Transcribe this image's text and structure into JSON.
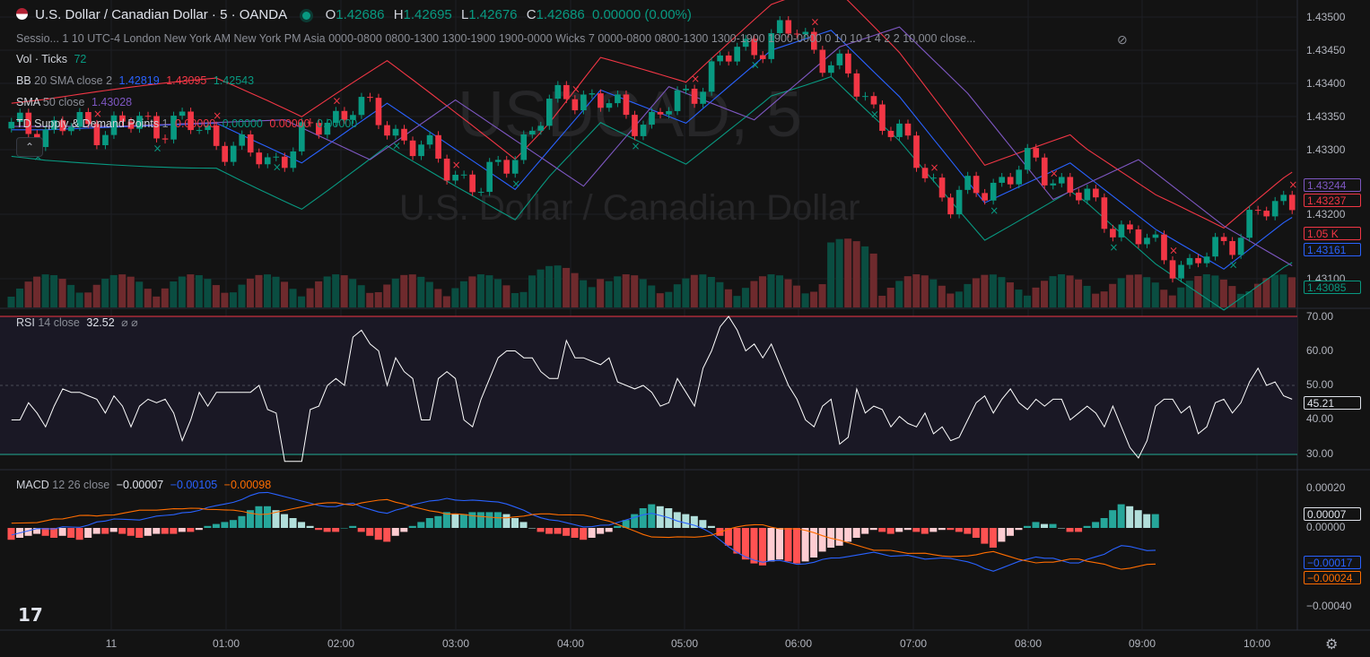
{
  "header": {
    "symbol_title": "U.S. Dollar / Canadian Dollar · 5 · OANDA",
    "o_label": "O",
    "o_value": "1.42686",
    "h_label": "H",
    "h_value": "1.42695",
    "l_label": "L",
    "l_value": "1.42676",
    "c_label": "C",
    "c_value": "1.42686",
    "change": "0.00000 (0.00%)"
  },
  "watermark": {
    "ticker": "USDCAD, 5",
    "name": "U.S. Dollar / Canadian Dollar"
  },
  "indicators": {
    "sessions_text": "Sessio... 1 10 UTC-4 London New York AM New York PM Asia 0000-0800 0800-1300 1300-1900 1900-0000 Wicks 7 0000-0800 0800-1300 1300-1900 1900-0000 0 10 10 1 4 2 2 10,000 close...",
    "vol_label": "Vol · Ticks",
    "vol_value": "72",
    "bb_label": "BB",
    "bb_params": "20 SMA close 2",
    "bb_basis": "1.42819",
    "bb_upper": "1.43095",
    "bb_lower": "1.42543",
    "sma_label": "SMA",
    "sma_params": "50 close",
    "sma_value": "1.43028",
    "td_label": "TD Supply & Demand Points",
    "td_params": "1",
    "td_values": [
      "0.00000",
      "0.00000",
      "0.00000",
      "0.00000"
    ],
    "collapse_icon": "chevron-up-icon"
  },
  "price_axis": {
    "ticks": [
      "1.43500",
      "1.43450",
      "1.43400",
      "1.43350",
      "1.43300",
      "1.43200",
      "1.43100"
    ],
    "tags": [
      {
        "text": "1.43244",
        "color": "#7e57c2",
        "style": "outline"
      },
      {
        "text": "1.43237",
        "color": "#f23645",
        "style": "outline"
      },
      {
        "text": "1.05 K",
        "color": "#f23645",
        "style": "outline"
      },
      {
        "text": "1.43161",
        "color": "#2962ff",
        "style": "outline"
      },
      {
        "text": "1.43085",
        "color": "#089981",
        "style": "outline"
      }
    ]
  },
  "rsi": {
    "label": "RSI",
    "params": "14 close",
    "value": "32.52",
    "extra": "⌀ ⌀",
    "ticks": [
      "70.00",
      "60.00",
      "50.00",
      "40.00",
      "30.00"
    ],
    "current_tag": "45.21",
    "overbought": 70,
    "oversold": 30,
    "middle": 50
  },
  "macd": {
    "label": "MACD",
    "params": "12 26 close",
    "hist_value": "−0.00007",
    "macd_value": "−0.00105",
    "signal_value": "−0.00098",
    "ticks": [
      "0.00020",
      "0.00000",
      "−0.00040"
    ],
    "tags": [
      {
        "text": "0.00007",
        "color": "#d1d4dc",
        "style": "outline"
      },
      {
        "text": "−0.00017",
        "color": "#2962ff",
        "style": "outline"
      },
      {
        "text": "−0.00024",
        "color": "#ff6d00",
        "style": "outline"
      }
    ]
  },
  "time_axis": [
    "11",
    "01:00",
    "02:00",
    "03:00",
    "04:00",
    "05:00",
    "06:00",
    "07:00",
    "08:00",
    "09:00",
    "10:00"
  ],
  "colors": {
    "up": "#089981",
    "down": "#f23645",
    "bb_upper": "#f23645",
    "bb_basis": "#2962ff",
    "bb_lower": "#089981",
    "sma": "#7e57c2",
    "rsi": "#ffffff",
    "macd": "#2962ff",
    "signal": "#ff6d00"
  },
  "logo": "tradingview-logo",
  "settings_icon": "gear-icon",
  "eye_icon": "eye-slash-icon",
  "chart_data": {
    "type": "candlestick",
    "interval": "5",
    "price_range": [
      1.4306,
      1.4352
    ],
    "rsi_range": [
      27,
      72
    ],
    "rsi_values": [
      40,
      40,
      45,
      42,
      38,
      44,
      49,
      48,
      48,
      47,
      46,
      42,
      47,
      44,
      38,
      44,
      46,
      45,
      46,
      42,
      34,
      40,
      48,
      44,
      48,
      48,
      48,
      48,
      48,
      50,
      43,
      42,
      28,
      28,
      28,
      43,
      44,
      50,
      52,
      50,
      64,
      66,
      62,
      60,
      50,
      58,
      54,
      52,
      40,
      40,
      52,
      54,
      52,
      40,
      38,
      46,
      52,
      58,
      60,
      60,
      58,
      58,
      54,
      52,
      52,
      63,
      58,
      58,
      57,
      56,
      58,
      51,
      50,
      49,
      50,
      48,
      44,
      45,
      52,
      48,
      44,
      55,
      60,
      67,
      70,
      66,
      60,
      62,
      58,
      62,
      56,
      50,
      46,
      40,
      38,
      44,
      46,
      33,
      35,
      49,
      42,
      44,
      43,
      38,
      41,
      39,
      38,
      42,
      36,
      38,
      34,
      35,
      40,
      45,
      47,
      42,
      46,
      49,
      45,
      43,
      46,
      44,
      46,
      46,
      40,
      42,
      44,
      42,
      38,
      44,
      38,
      32,
      29,
      34,
      44,
      46,
      46,
      42,
      44,
      36,
      38,
      45,
      46,
      42,
      45,
      51,
      55,
      50,
      51,
      47,
      46
    ],
    "macd_hist": [
      -6e-05,
      -5e-05,
      -4e-05,
      -3e-05,
      -4e-05,
      -5e-05,
      -4e-05,
      -5e-05,
      -6e-05,
      -5e-05,
      -3e-05,
      -3e-05,
      -2e-05,
      -3e-05,
      -4e-05,
      -5e-05,
      -4e-05,
      -3e-05,
      -3e-05,
      -3e-05,
      -2e-05,
      -2e-05,
      -1e-05,
      1e-05,
      2e-05,
      3e-05,
      4e-05,
      6e-05,
      9e-05,
      0.00011,
      0.00011,
      9e-05,
      7e-05,
      5e-05,
      3e-05,
      1e-05,
      -1e-05,
      -2e-05,
      -2e-05,
      0.0,
      1e-05,
      -2e-05,
      -4e-05,
      -6e-05,
      -7e-05,
      -4e-05,
      -2e-05,
      1e-05,
      3e-05,
      5e-05,
      6e-05,
      8e-05,
      7e-05,
      7e-05,
      8e-05,
      8e-05,
      8e-05,
      8e-05,
      7e-05,
      5e-05,
      3e-05,
      0.0,
      -2e-05,
      -3e-05,
      -3e-05,
      -4e-05,
      -5e-05,
      -6e-05,
      -5e-05,
      -3e-05,
      -2e-05,
      1e-05,
      4e-05,
      7e-05,
      0.0001,
      0.00012,
      0.00011,
      0.0001,
      8e-05,
      7e-05,
      6e-05,
      4e-05,
      1e-05,
      -4e-05,
      -9e-05,
      -0.00013,
      -0.00016,
      -0.00018,
      -0.00019,
      -0.00017,
      -0.00016,
      -0.00017,
      -0.00018,
      -0.00017,
      -0.00015,
      -0.00012,
      -0.0001,
      -9e-05,
      -7e-05,
      -5e-05,
      -3e-05,
      -1e-05,
      -2e-05,
      -3e-05,
      -2e-05,
      -1e-05,
      -2e-05,
      -3e-05,
      -2e-05,
      -1e-05,
      -1e-05,
      -2e-05,
      -3e-05,
      -5e-05,
      -8e-05,
      -0.0001,
      -7e-05,
      -4e-05,
      -1e-05,
      1e-05,
      3e-05,
      2e-05,
      2e-05,
      0.0,
      -2e-05,
      -2e-05,
      1e-05,
      3e-05,
      5e-05,
      9e-05,
      0.00012,
      0.00011,
      9e-05,
      7e-05,
      7e-05
    ],
    "x_labels": [
      "11",
      "01:00",
      "02:00",
      "03:00",
      "04:00",
      "05:00",
      "06:00",
      "07:00",
      "08:00",
      "09:00",
      "10:00"
    ]
  }
}
